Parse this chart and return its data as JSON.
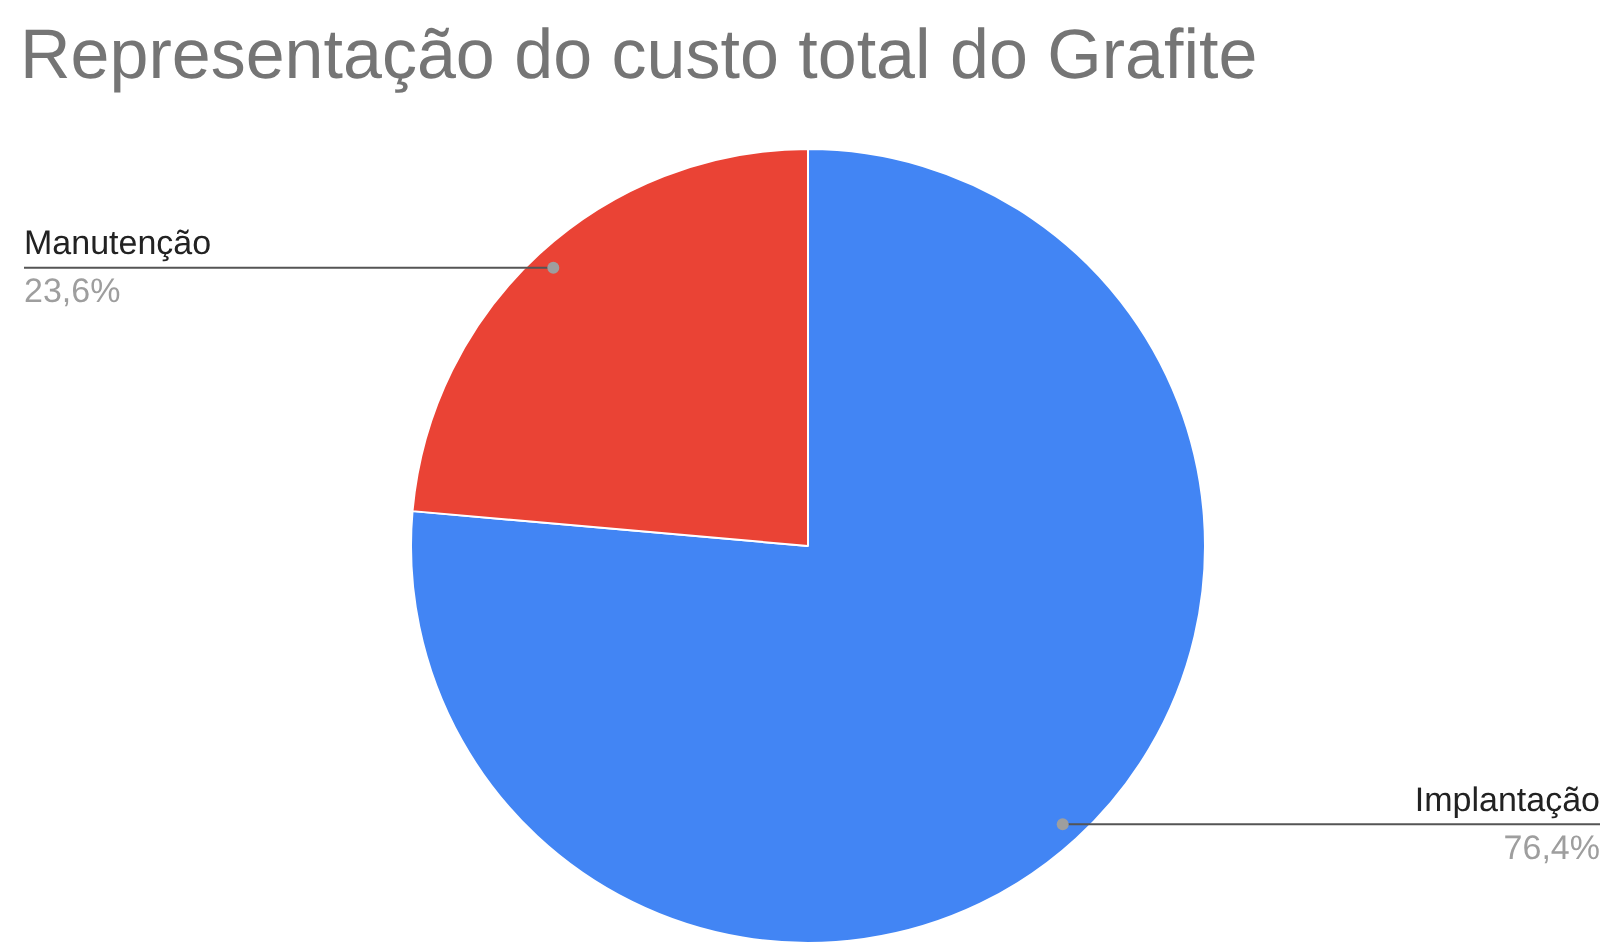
{
  "chart_data": {
    "type": "pie",
    "title": "Representação do custo total do Grafite",
    "categories": [
      "Implantação",
      "Manutenção"
    ],
    "values": [
      76.4,
      23.6
    ],
    "value_labels": [
      "76,4%",
      "23,6%"
    ],
    "colors": [
      "#4285f4",
      "#ea4335"
    ],
    "legend": false
  }
}
